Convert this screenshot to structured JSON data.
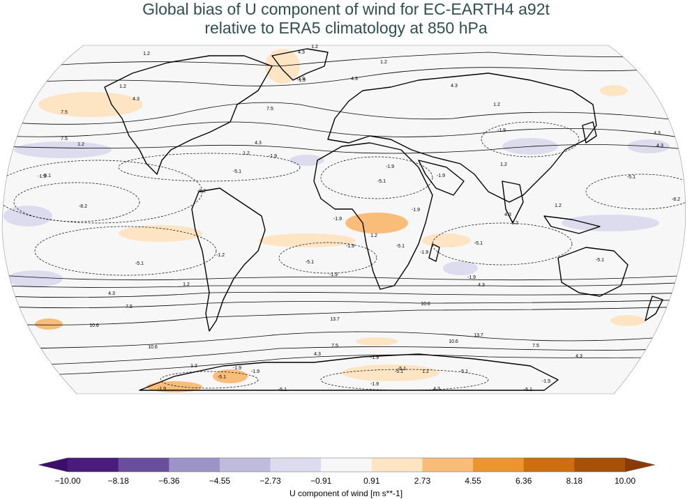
{
  "title": {
    "line1": "Global bias of U component of wind for EC-EARTH4 a92t",
    "line2": "relative to ERA5 climatology at 850 hPa"
  },
  "colorbar": {
    "label": "U component of wind [m s**-1]",
    "ticks": [
      "−10.00",
      "−8.18",
      "−6.36",
      "−4.55",
      "−2.73",
      "−0.91",
      "0.91",
      "2.73",
      "4.55",
      "6.36",
      "8.18",
      "10.00"
    ],
    "colors": [
      "#4a1a7d",
      "#6a4e9e",
      "#9c93c7",
      "#bfbbdd",
      "#dcdcee",
      "#f7f7f7",
      "#fde5c4",
      "#f9bd79",
      "#ec952e",
      "#cf6e0f",
      "#a65008"
    ],
    "under_color": "#3b0f6b",
    "over_color": "#8a3b05"
  },
  "contour_labels": [
    "1.2",
    "4.3",
    "1.2",
    "1.2",
    "-1.9",
    "4.3",
    "1.2",
    "4.3",
    "1.2",
    "-1.9",
    "4.3",
    "7.5",
    "7.5",
    "4.3",
    "1.2",
    "-1.9",
    "4.3",
    "7.5",
    "4.3",
    "1.2",
    "-1.9",
    "-5.1",
    "-1.9",
    "-5.1",
    "-1.9",
    "-1.9",
    "-5.1",
    "-8.2",
    "-8.2",
    "-5.1",
    "-1.9",
    "-1.9",
    "1.2",
    "-1.9",
    "1.2",
    "4.3",
    "1.2",
    "-8.2",
    "-5.1",
    "-1.9",
    "-5.1",
    "-5.1",
    "-1.2",
    "-5.1",
    "-1.9",
    "1.2",
    "4.3",
    "7.5",
    "10.6",
    "13.7",
    "10.6",
    "7.5",
    "4.3",
    "1.2",
    "-1.9",
    "-5.1",
    "-1.9",
    "10.6",
    "13.7",
    "10.6",
    "7.5",
    "4.3",
    "-1.9",
    "-5.1",
    "1.2",
    "-5.1",
    "-1.9",
    "4.3",
    "-5.1",
    "4.3",
    "-1.9",
    "-5.1",
    "1.2",
    "-5.1",
    "-1.9",
    "-1.9",
    "-5.1"
  ]
}
